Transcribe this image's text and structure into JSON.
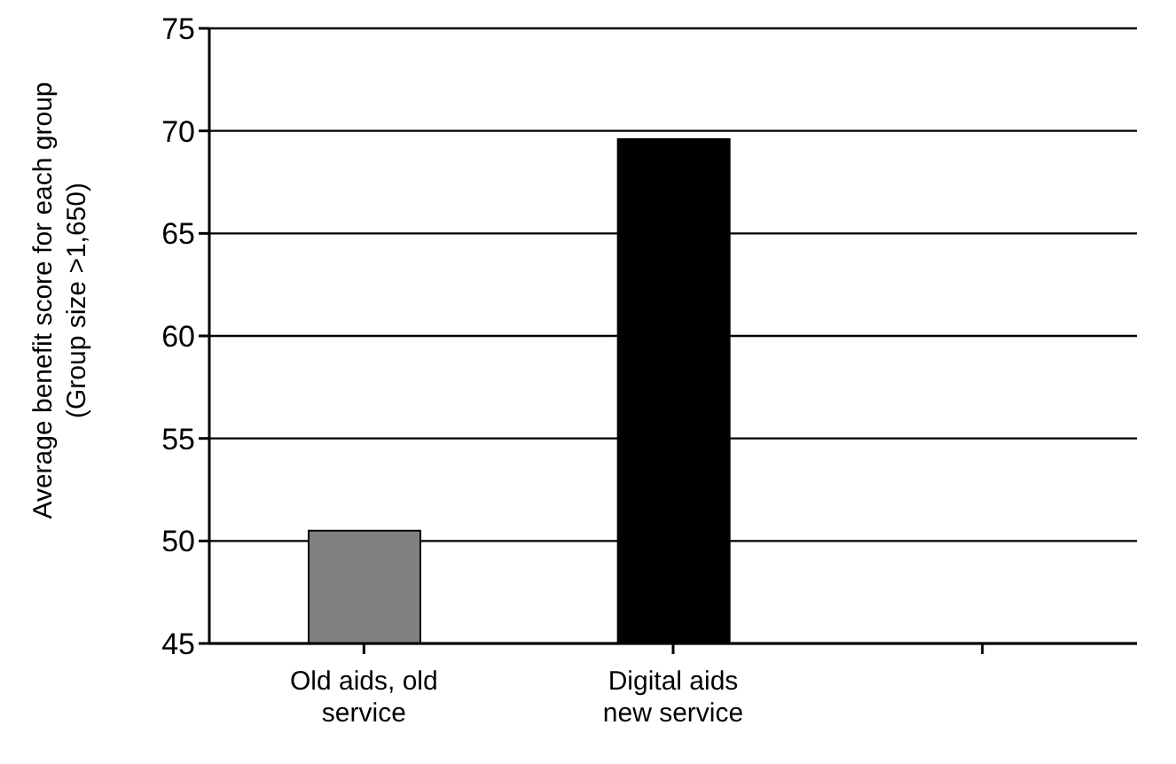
{
  "chart_data": {
    "type": "bar",
    "ylabel": "Average benefit score for each group\n(Group size >1,650)",
    "categories": [
      "Old aids, old service",
      "Digital aids new service",
      null
    ],
    "values": [
      50.5,
      69.6,
      null
    ],
    "colors": [
      "#808080",
      "#000000",
      null
    ],
    "ylim": [
      45,
      75
    ],
    "yticks": [
      45,
      50,
      55,
      60,
      65,
      70,
      75
    ],
    "grid": "y"
  }
}
